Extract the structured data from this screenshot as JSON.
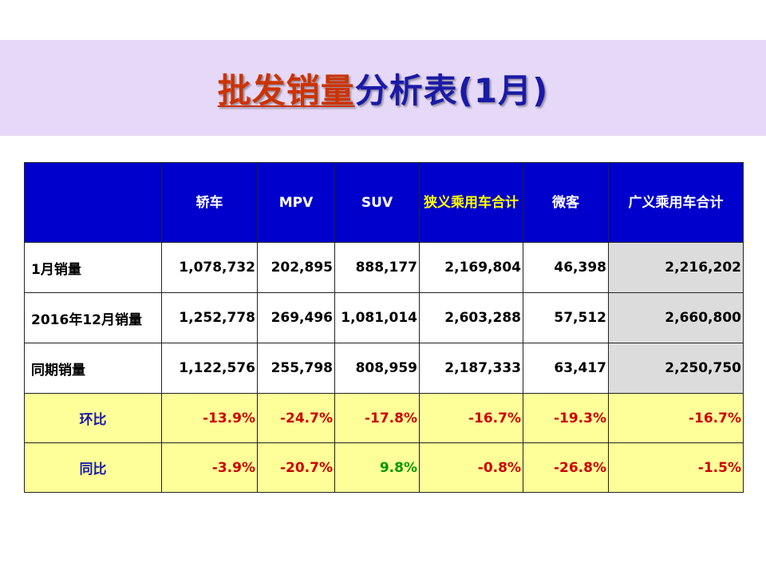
{
  "title": {
    "part1": "批发销量",
    "part2": "分析表(1月)"
  },
  "colors": {
    "header_bg": "#0000cc",
    "title_band": "#e6d9f7",
    "ratio_bg": "#ffff99",
    "negative": "#cc0000",
    "positive": "#009900"
  },
  "table": {
    "columns": [
      "",
      "轿车",
      "MPV",
      "SUV",
      "狭义乘用车合计",
      "微客",
      "广义乘用车合计"
    ],
    "rows": [
      {
        "label": "1月销量",
        "values": [
          "1,078,732",
          "202,895",
          "888,177",
          "2,169,804",
          "46,398",
          "2,216,202"
        ]
      },
      {
        "label": "2016年12月销量",
        "values": [
          "1,252,778",
          "269,496",
          "1,081,014",
          "2,603,288",
          "57,512",
          "2,660,800"
        ]
      },
      {
        "label": "同期销量",
        "values": [
          "1,122,576",
          "255,798",
          "808,959",
          "2,187,333",
          "63,417",
          "2,250,750"
        ]
      }
    ],
    "ratios": [
      {
        "label": "环比",
        "values": [
          "-13.9%",
          "-24.7%",
          "-17.8%",
          "-16.7%",
          "-19.3%",
          "-16.7%"
        ]
      },
      {
        "label": "同比",
        "values": [
          "-3.9%",
          "-20.7%",
          "9.8%",
          "-0.8%",
          "-26.8%",
          "-1.5%"
        ]
      }
    ]
  }
}
